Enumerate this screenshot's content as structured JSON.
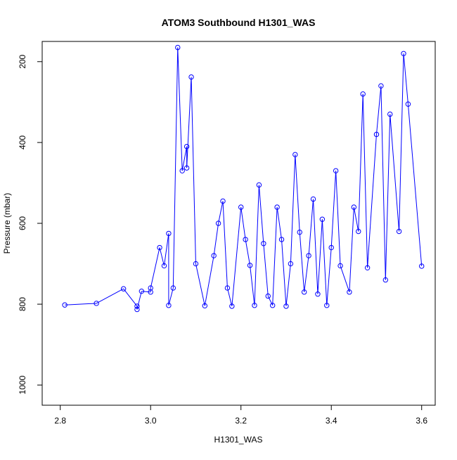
{
  "chart_data": {
    "type": "scatter",
    "title": "ATOM3 Southbound H1301_WAS",
    "xlabel": "H1301_WAS",
    "ylabel": "Pressure (mbar)",
    "xlim": [
      2.8,
      3.6
    ],
    "ylim": [
      1000,
      200
    ],
    "y_axis_reversed": true,
    "grid": false,
    "legend": "none",
    "x_ticks": [
      "2.8",
      "3.0",
      "3.2",
      "3.4",
      "3.6"
    ],
    "y_ticks": [
      "200",
      "400",
      "600",
      "800",
      "1000"
    ],
    "series": [
      {
        "style": "points connected by lines",
        "color": "#0000ff",
        "points": [
          [
            2.81,
            802
          ],
          [
            2.88,
            798
          ],
          [
            2.94,
            762
          ],
          [
            2.97,
            805
          ],
          [
            2.97,
            813
          ],
          [
            2.98,
            768
          ],
          [
            3.0,
            770
          ],
          [
            3.0,
            760
          ],
          [
            3.02,
            660
          ],
          [
            3.03,
            705
          ],
          [
            3.04,
            625
          ],
          [
            3.04,
            803
          ],
          [
            3.05,
            760
          ],
          [
            3.06,
            165
          ],
          [
            3.07,
            470
          ],
          [
            3.08,
            410
          ],
          [
            3.08,
            463
          ],
          [
            3.09,
            238
          ],
          [
            3.1,
            700
          ],
          [
            3.12,
            804
          ],
          [
            3.14,
            680
          ],
          [
            3.15,
            600
          ],
          [
            3.16,
            545
          ],
          [
            3.17,
            760
          ],
          [
            3.18,
            805
          ],
          [
            3.2,
            560
          ],
          [
            3.21,
            640
          ],
          [
            3.22,
            704
          ],
          [
            3.23,
            803
          ],
          [
            3.24,
            505
          ],
          [
            3.25,
            650
          ],
          [
            3.26,
            780
          ],
          [
            3.27,
            803
          ],
          [
            3.28,
            560
          ],
          [
            3.29,
            640
          ],
          [
            3.3,
            805
          ],
          [
            3.31,
            700
          ],
          [
            3.32,
            430
          ],
          [
            3.33,
            622
          ],
          [
            3.34,
            770
          ],
          [
            3.35,
            680
          ],
          [
            3.36,
            540
          ],
          [
            3.37,
            775
          ],
          [
            3.38,
            590
          ],
          [
            3.39,
            803
          ],
          [
            3.4,
            660
          ],
          [
            3.41,
            470
          ],
          [
            3.42,
            705
          ],
          [
            3.44,
            770
          ],
          [
            3.45,
            560
          ],
          [
            3.46,
            620
          ],
          [
            3.47,
            280
          ],
          [
            3.48,
            710
          ],
          [
            3.5,
            380
          ],
          [
            3.51,
            260
          ],
          [
            3.52,
            740
          ],
          [
            3.53,
            330
          ],
          [
            3.55,
            620
          ],
          [
            3.56,
            180
          ],
          [
            3.57,
            305
          ],
          [
            3.6,
            706
          ]
        ]
      }
    ]
  }
}
